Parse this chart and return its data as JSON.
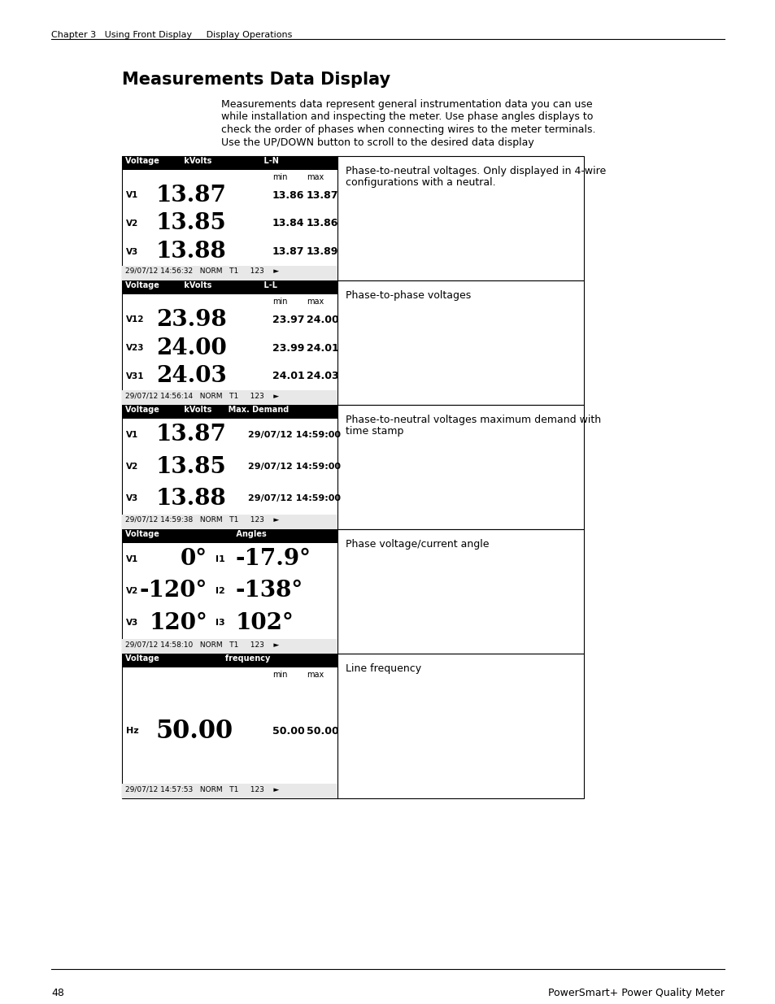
{
  "page_bg": "#ffffff",
  "header_text": "Chapter 3   Using Front Display     Display Operations",
  "page_num": "48",
  "footer_right": "PowerSmart+ Power Quality Meter",
  "title": "Measurements Data Display",
  "intro_lines": [
    "Measurements data represent general instrumentation data you can use",
    "while installation and inspecting the meter. Use phase angles displays to",
    "check the order of phases when connecting wires to the meter terminals.",
    "Use the UP/DOWN button to scroll to the desired data display"
  ],
  "rows": [
    {
      "screen_header": "Voltage         kVolts                   L-N",
      "screen_sub_left": "min",
      "screen_sub_right": "max",
      "type": "minmax",
      "lines": [
        {
          "label": "V1",
          "value": "13.87",
          "min": "13.86",
          "max": "13.87"
        },
        {
          "label": "V2",
          "value": "13.85",
          "min": "13.84",
          "max": "13.86"
        },
        {
          "label": "V3",
          "value": "13.88",
          "min": "13.87",
          "max": "13.89"
        }
      ],
      "footer": "29/07/12 14:56:32   NORM   T1     123    ►",
      "description": "Phase-to-neutral voltages. Only displayed in 4-wire\nconfigurations with a neutral."
    },
    {
      "screen_header": "Voltage         kVolts                   L-L",
      "screen_sub_left": "min",
      "screen_sub_right": "max",
      "type": "minmax",
      "lines": [
        {
          "label": "V12",
          "value": "23.98",
          "min": "23.97",
          "max": "24.00"
        },
        {
          "label": "V23",
          "value": "24.00",
          "min": "23.99",
          "max": "24.01"
        },
        {
          "label": "V31",
          "value": "24.03",
          "min": "24.01",
          "max": "24.03"
        }
      ],
      "footer": "29/07/12 14:56:14   NORM   T1     123    ►",
      "description": "Phase-to-phase voltages"
    },
    {
      "screen_header": "Voltage         kVolts      Max. Demand",
      "type": "demand",
      "lines": [
        {
          "label": "V1",
          "value": "13.87",
          "timestamp": "29/07/12 14:59:00"
        },
        {
          "label": "V2",
          "value": "13.85",
          "timestamp": "29/07/12 14:59:00"
        },
        {
          "label": "V3",
          "value": "13.88",
          "timestamp": "29/07/12 14:59:00"
        }
      ],
      "footer": "29/07/12 14:59:38   NORM   T1     123    ►",
      "description": "Phase-to-neutral voltages maximum demand with\ntime stamp"
    },
    {
      "screen_header": "Voltage                            Angles",
      "type": "angle",
      "lines": [
        {
          "label": "V1",
          "v_angle": "0°",
          "i_label": "I1",
          "i_angle": "-17.9°"
        },
        {
          "label": "V2",
          "v_angle": "-120°",
          "i_label": "I2",
          "i_angle": "-138°"
        },
        {
          "label": "V3",
          "v_angle": "120°",
          "i_label": "I3",
          "i_angle": "102°"
        }
      ],
      "footer": "29/07/12 14:58:10   NORM   T1     123    ►",
      "description": "Phase voltage/current angle"
    },
    {
      "screen_header": "Voltage                        frequency",
      "screen_sub_left": "min",
      "screen_sub_right": "max",
      "type": "freq",
      "lines": [
        {
          "label": "Hz",
          "value": "50.00",
          "min": "50.00",
          "max": "50.00"
        }
      ],
      "footer": "29/07/12 14:57:53   NORM   T1     123    ►",
      "description": "Line frequency"
    }
  ]
}
